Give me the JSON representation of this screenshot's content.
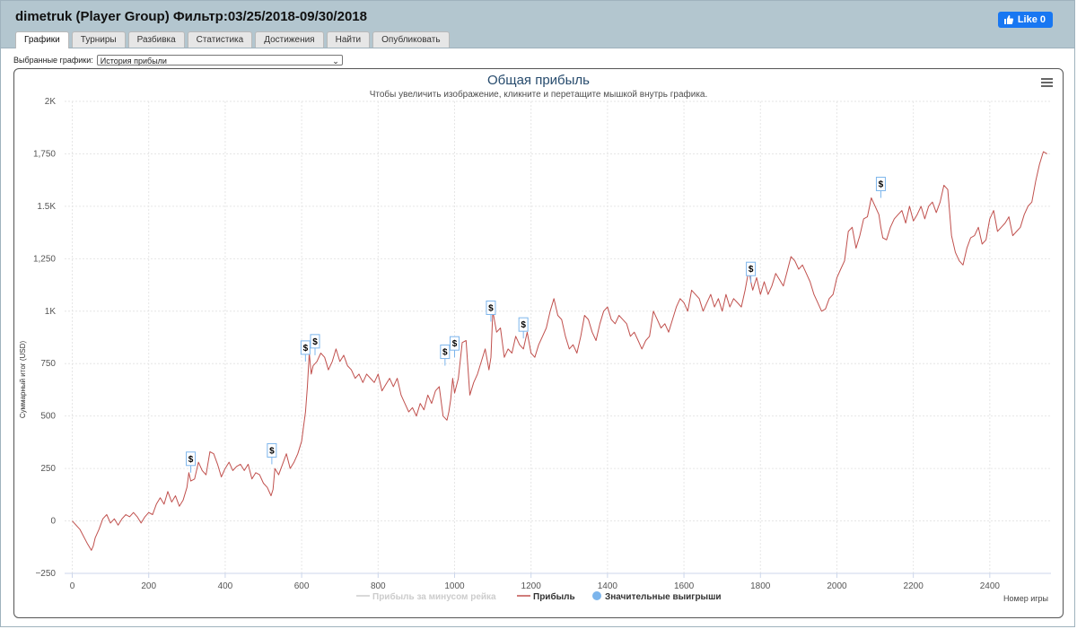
{
  "window": {
    "title": "dimetruk (Player Group) Фильтр:03/25/2018-09/30/2018",
    "like_label": "Like 0"
  },
  "tabs": [
    {
      "label": "Графики",
      "active": true
    },
    {
      "label": "Турниры",
      "active": false
    },
    {
      "label": "Разбивка",
      "active": false
    },
    {
      "label": "Статистика",
      "active": false
    },
    {
      "label": "Достижения",
      "active": false
    },
    {
      "label": "Найти",
      "active": false
    },
    {
      "label": "Опубликовать",
      "active": false
    }
  ],
  "selector": {
    "label": "Выбранные графики:",
    "value": "История прибыли"
  },
  "chart_data": {
    "type": "line",
    "title": "Общая прибыль",
    "subtitle": "Чтобы увеличить изображение, кликните и перетащите мышкой внутрь графика.",
    "xlabel": "Номер игры",
    "ylabel": "Суммарный итог (USD)",
    "xlim": [
      -20,
      2560
    ],
    "ylim": [
      -250,
      2000
    ],
    "x_ticks": [
      0,
      200,
      400,
      600,
      800,
      1000,
      1200,
      1400,
      1600,
      1800,
      2000,
      2200,
      2400
    ],
    "x_tick_labels": [
      "0",
      "200",
      "400",
      "600",
      "800",
      "1000",
      "1200",
      "1400",
      "1600",
      "1800",
      "2000",
      "2200",
      "2400"
    ],
    "y_ticks": [
      -250,
      0,
      250,
      500,
      750,
      1000,
      1250,
      1500,
      1750,
      2000
    ],
    "y_tick_labels": [
      "−250",
      "0",
      "250",
      "500",
      "750",
      "1K",
      "1,250",
      "1.5K",
      "1,750",
      "2K"
    ],
    "grid": true,
    "colors": {
      "profit": "#c0504d",
      "rake": "#cccccc",
      "bigwins": "#7cb5ec",
      "title": "#274b6d"
    },
    "series": [
      {
        "name": "Прибыль",
        "x": [
          0,
          20,
          40,
          50,
          55,
          60,
          70,
          80,
          90,
          100,
          110,
          120,
          130,
          140,
          150,
          160,
          170,
          180,
          190,
          200,
          210,
          220,
          230,
          240,
          250,
          260,
          270,
          280,
          290,
          300,
          305,
          310,
          320,
          330,
          340,
          350,
          360,
          370,
          380,
          390,
          400,
          410,
          420,
          430,
          440,
          450,
          460,
          470,
          480,
          490,
          500,
          510,
          520,
          525,
          530,
          540,
          550,
          560,
          570,
          580,
          590,
          600,
          605,
          610,
          615,
          620,
          625,
          630,
          640,
          650,
          660,
          670,
          680,
          690,
          700,
          710,
          720,
          730,
          740,
          750,
          760,
          770,
          780,
          790,
          800,
          810,
          820,
          830,
          840,
          850,
          860,
          870,
          880,
          890,
          900,
          910,
          920,
          930,
          940,
          950,
          960,
          970,
          980,
          985,
          990,
          995,
          1000,
          1010,
          1020,
          1030,
          1040,
          1050,
          1060,
          1070,
          1080,
          1090,
          1095,
          1100,
          1110,
          1120,
          1130,
          1140,
          1150,
          1160,
          1170,
          1180,
          1190,
          1200,
          1210,
          1220,
          1230,
          1240,
          1250,
          1260,
          1270,
          1280,
          1290,
          1300,
          1310,
          1320,
          1330,
          1340,
          1350,
          1360,
          1370,
          1380,
          1390,
          1400,
          1410,
          1420,
          1430,
          1440,
          1450,
          1460,
          1470,
          1480,
          1490,
          1500,
          1510,
          1520,
          1530,
          1540,
          1550,
          1560,
          1570,
          1580,
          1590,
          1600,
          1610,
          1620,
          1630,
          1640,
          1650,
          1660,
          1670,
          1680,
          1690,
          1700,
          1710,
          1720,
          1730,
          1740,
          1750,
          1760,
          1770,
          1775,
          1780,
          1790,
          1800,
          1810,
          1820,
          1830,
          1840,
          1850,
          1860,
          1870,
          1880,
          1890,
          1900,
          1910,
          1920,
          1930,
          1940,
          1950,
          1960,
          1970,
          1980,
          1990,
          2000,
          2010,
          2020,
          2030,
          2040,
          2050,
          2060,
          2070,
          2080,
          2090,
          2100,
          2110,
          2115,
          2120,
          2130,
          2140,
          2150,
          2160,
          2170,
          2180,
          2190,
          2200,
          2210,
          2220,
          2230,
          2240,
          2250,
          2260,
          2270,
          2280,
          2290,
          2300,
          2310,
          2320,
          2330,
          2340,
          2350,
          2360,
          2370,
          2380,
          2390,
          2400,
          2410,
          2420,
          2430,
          2440,
          2450,
          2460,
          2470,
          2480,
          2490,
          2500,
          2510,
          2520,
          2530,
          2540,
          2550
        ],
        "y": [
          0,
          -40,
          -110,
          -140,
          -120,
          -80,
          -40,
          10,
          30,
          -10,
          10,
          -20,
          10,
          30,
          20,
          40,
          20,
          -10,
          20,
          40,
          30,
          80,
          110,
          80,
          140,
          90,
          120,
          70,
          100,
          160,
          230,
          190,
          200,
          280,
          240,
          220,
          330,
          320,
          270,
          210,
          250,
          280,
          240,
          260,
          270,
          240,
          270,
          200,
          230,
          220,
          180,
          160,
          120,
          150,
          250,
          220,
          270,
          320,
          250,
          280,
          320,
          380,
          450,
          520,
          640,
          800,
          700,
          740,
          760,
          800,
          780,
          720,
          760,
          820,
          760,
          790,
          740,
          720,
          680,
          700,
          660,
          700,
          680,
          660,
          700,
          620,
          650,
          680,
          640,
          680,
          600,
          560,
          520,
          540,
          500,
          560,
          530,
          600,
          560,
          620,
          640,
          500,
          480,
          520,
          580,
          680,
          610,
          680,
          850,
          860,
          600,
          660,
          700,
          760,
          820,
          720,
          780,
          1000,
          900,
          920,
          780,
          820,
          800,
          880,
          840,
          820,
          900,
          800,
          780,
          840,
          880,
          920,
          1000,
          1060,
          980,
          960,
          880,
          820,
          840,
          800,
          880,
          980,
          960,
          900,
          860,
          940,
          1000,
          1020,
          960,
          940,
          980,
          960,
          940,
          880,
          900,
          860,
          820,
          860,
          880,
          1000,
          960,
          920,
          940,
          900,
          960,
          1020,
          1060,
          1040,
          1000,
          1100,
          1080,
          1060,
          1000,
          1040,
          1080,
          1020,
          1060,
          1000,
          1080,
          1020,
          1060,
          1040,
          1020,
          1100,
          1200,
          1140,
          1100,
          1160,
          1080,
          1140,
          1080,
          1120,
          1180,
          1150,
          1120,
          1190,
          1260,
          1240,
          1200,
          1220,
          1180,
          1140,
          1080,
          1040,
          1000,
          1010,
          1060,
          1080,
          1160,
          1200,
          1240,
          1380,
          1400,
          1300,
          1360,
          1440,
          1450,
          1540,
          1500,
          1460,
          1400,
          1350,
          1340,
          1400,
          1440,
          1460,
          1480,
          1420,
          1500,
          1430,
          1460,
          1500,
          1440,
          1500,
          1520,
          1470,
          1520,
          1600,
          1580,
          1360,
          1280,
          1240,
          1220,
          1300,
          1350,
          1360,
          1400,
          1320,
          1340,
          1440,
          1480,
          1380,
          1400,
          1420,
          1450,
          1360,
          1380,
          1400,
          1460,
          1500,
          1520,
          1620,
          1700,
          1760,
          1750
        ]
      },
      {
        "name": "Прибыль за минусом рейка",
        "x": [],
        "y": []
      }
    ],
    "markers": {
      "name": "Значительные выигрыши",
      "label": "$",
      "points": [
        [
          310,
          230
        ],
        [
          522,
          270
        ],
        [
          610,
          760
        ],
        [
          635,
          790
        ],
        [
          975,
          740
        ],
        [
          1000,
          780
        ],
        [
          1095,
          950
        ],
        [
          1180,
          870
        ],
        [
          1775,
          1135
        ],
        [
          2115,
          1540
        ]
      ]
    },
    "legend_placement": "bottom-center"
  }
}
